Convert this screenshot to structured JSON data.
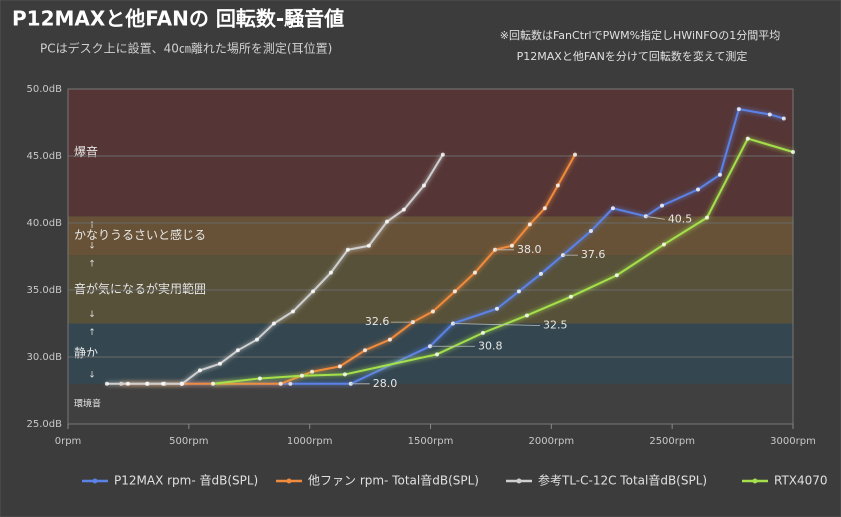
{
  "chart_data": {
    "type": "line",
    "title": "P12MAXと他FANの 回転数-騒音値",
    "subtitle": "PCはデスク上に設置、40㎝離れた場所を測定(耳位置)",
    "notes": [
      "※回転数はFanCtrlでPWM%指定しHWiNFOの1分間平均",
      "P12MAXと他FANを分けて回転数を変えて測定"
    ],
    "xlim": [
      0,
      3000
    ],
    "xticks": [
      {
        "value": 0,
        "label": "0rpm"
      },
      {
        "value": 500,
        "label": "500rpm"
      },
      {
        "value": 1000,
        "label": "1000rpm"
      },
      {
        "value": 1500,
        "label": "1500rpm"
      },
      {
        "value": 2000,
        "label": "2000rpm"
      },
      {
        "value": 2500,
        "label": "2500rpm"
      },
      {
        "value": 3000,
        "label": "3000rpm"
      }
    ],
    "ylim": [
      25,
      50
    ],
    "yticks": [
      {
        "value": 25,
        "label": "25.0dB"
      },
      {
        "value": 30,
        "label": "30.0dB"
      },
      {
        "value": 35,
        "label": "35.0dB"
      },
      {
        "value": 40,
        "label": "40.0dB"
      },
      {
        "value": 45,
        "label": "45.0dB"
      },
      {
        "value": 50,
        "label": "50.0dB"
      }
    ],
    "grid": true,
    "bands": [
      {
        "from": 25,
        "to": 28,
        "label": "環境音",
        "color": "#404040"
      },
      {
        "from": 28,
        "to": 32.5,
        "label": "静か",
        "color": "#34464f"
      },
      {
        "from": 32.5,
        "to": 37.6,
        "label": "音が気になるが実用範囲",
        "color": "#575139"
      },
      {
        "from": 37.6,
        "to": 40.5,
        "label": "かなりうるさいと感じる",
        "color": "#675237"
      },
      {
        "from": 40.5,
        "to": 50,
        "label": "爆音",
        "color": "#553535"
      }
    ],
    "series": [
      {
        "name": "P12MAX rpm- 音dB(SPL)",
        "color": "#5b82e6",
        "x": [
          470,
          920,
          1170,
          1498,
          1593,
          1775,
          1866,
          1957,
          2048,
          2164,
          2255,
          2391,
          2458,
          2607,
          2698,
          2776,
          2904,
          2962
        ],
        "y": [
          28,
          28,
          28,
          30.8,
          32.5,
          33.6,
          34.9,
          36.2,
          37.6,
          39.4,
          41.1,
          40.5,
          41.3,
          42.5,
          43.6,
          48.5,
          48.1,
          47.8
        ]
      },
      {
        "name": "他ファン rpm- Total音dB(SPL)",
        "color": "#f08a3c",
        "x": [
          220,
          330,
          400,
          470,
          880,
          1010,
          1125,
          1229,
          1332,
          1427,
          1510,
          1601,
          1684,
          1767,
          1837,
          1911,
          1973,
          2027,
          2098
        ],
        "y": [
          28,
          28,
          28,
          28,
          28,
          28.9,
          29.3,
          30.5,
          31.3,
          32.6,
          33.4,
          34.9,
          36.3,
          38.0,
          38.3,
          39.9,
          41.1,
          42.8,
          45.1
        ]
      },
      {
        "name": "参考TL-C-12C Total音dB(SPL)",
        "color": "#cfcfcf",
        "x": [
          161,
          248,
          327,
          393,
          472,
          546,
          629,
          703,
          782,
          852,
          931,
          1014,
          1088,
          1158,
          1245,
          1320,
          1390,
          1473,
          1551
        ],
        "y": [
          28,
          28,
          28,
          28,
          28,
          29.0,
          29.5,
          30.5,
          31.3,
          32.5,
          33.4,
          34.9,
          36.3,
          38.0,
          38.3,
          40.1,
          41.0,
          42.8,
          45.1
        ]
      },
      {
        "name": "RTX4070",
        "color": "#a4e04c",
        "x": [
          600,
          794,
          968,
          1146,
          1527,
          1717,
          1899,
          2081,
          2271,
          2466,
          2644,
          2813,
          3000
        ],
        "y": [
          28,
          28.4,
          28.6,
          28.7,
          30.2,
          31.8,
          33.1,
          34.5,
          36.1,
          38.4,
          40.4,
          46.3,
          45.3
        ]
      }
    ],
    "annotations": [
      {
        "x": 1170,
        "value": 28,
        "label": "28.0"
      },
      {
        "x": 1498,
        "value": 30.8,
        "label": "30.8"
      },
      {
        "x": 1593,
        "value": 32.5,
        "label": "32.5"
      },
      {
        "x": 1427,
        "value": 32.6,
        "label": "32.6"
      },
      {
        "x": 1767,
        "value": 38,
        "label": "38.0"
      },
      {
        "x": 2048,
        "value": 37.6,
        "label": "37.6"
      },
      {
        "x": 2391,
        "value": 40.5,
        "label": "40.5"
      }
    ]
  }
}
